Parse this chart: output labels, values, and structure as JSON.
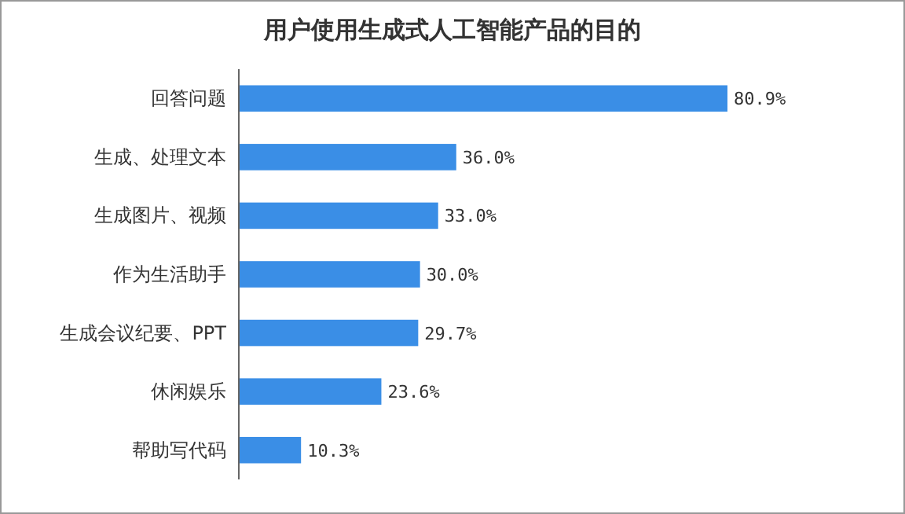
{
  "chart_data": {
    "type": "bar",
    "orientation": "horizontal",
    "title": "用户使用生成式人工智能产品的目的",
    "categories": [
      "回答问题",
      "生成、处理文本",
      "生成图片、视频",
      "作为生活助手",
      "生成会议纪要、PPT",
      "休闲娱乐",
      "帮助写代码"
    ],
    "values": [
      80.9,
      36.0,
      33.0,
      30.0,
      29.7,
      23.6,
      10.3
    ],
    "value_labels": [
      "80.9%",
      "36.0%",
      "33.0%",
      "30.0%",
      "29.7%",
      "23.6%",
      "10.3%"
    ],
    "color": "#3a8ee6"
  }
}
